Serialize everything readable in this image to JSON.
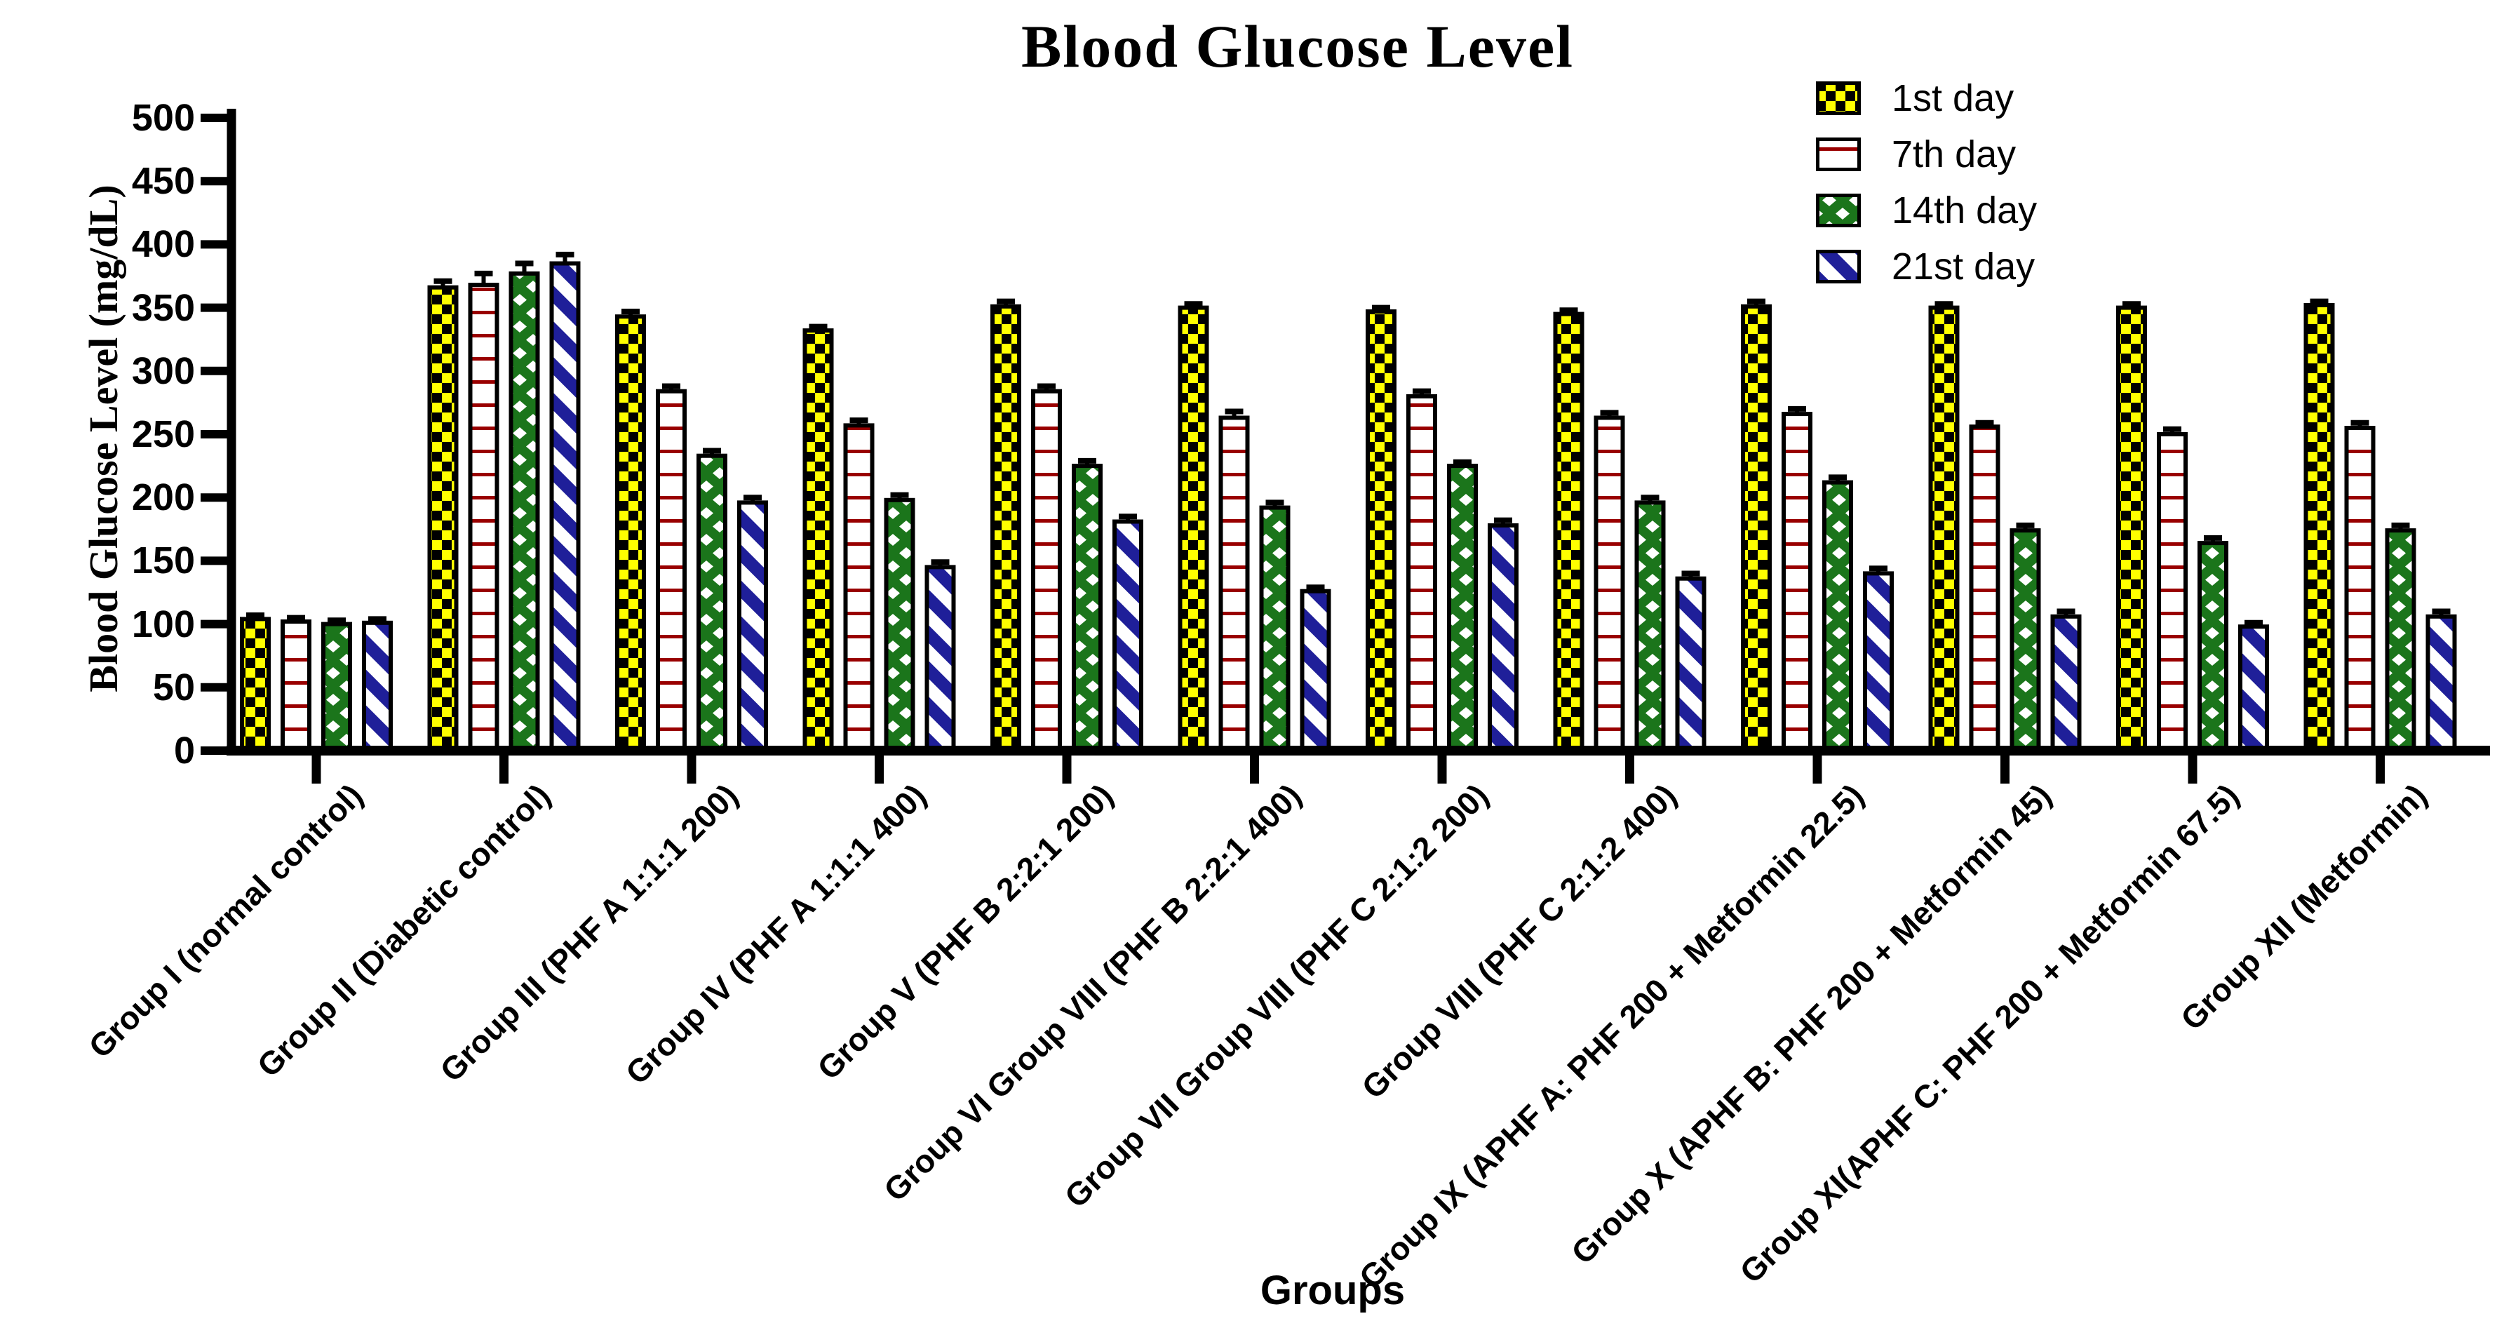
{
  "chart_data": {
    "type": "bar",
    "title": "Blood Glucose Level",
    "xlabel": "Groups",
    "ylabel": "Blood Glucose Level (mg/dL)",
    "ylim": [
      0,
      500
    ],
    "y_ticks": [
      0,
      50,
      100,
      150,
      200,
      250,
      300,
      350,
      400,
      450,
      500
    ],
    "grid": false,
    "legend_position": "top-right-inside",
    "error_bars": "sem-upper",
    "categories": [
      "Group I (normal control)",
      "Group II (Diabetic control)",
      "Group III (PHF A 1:1:1 200)",
      "Group IV (PHF A 1:1:1 400)",
      "Group V (PHF B 2:2:1 200)",
      "Group VI Group VIII (PHF B 2:2:1 400)",
      "Group VII Group VIII (PHF C 2:1:2 200)",
      "Group VIII (PHF C 2:1:2 400)",
      "Group IX (APHF A: PHF 200 + Metformin 22.5)",
      "Group X (APHF B: PHF 200 + Metformin 45)",
      "Group XI(APHF C: PHF 200 + Metformin 67.5)",
      "Group XII (Metformin)"
    ],
    "series": [
      {
        "name": "1st day",
        "pattern": "yellow-black-checker",
        "values": [
          104,
          366,
          343,
          332,
          351,
          350,
          347,
          345,
          351,
          350,
          350,
          352
        ],
        "errors": [
          3,
          5,
          4,
          3,
          4,
          3,
          3,
          3,
          4,
          3,
          3,
          3
        ]
      },
      {
        "name": "7th day",
        "pattern": "white-red-horizontal-lines",
        "values": [
          102,
          368,
          284,
          257,
          284,
          263,
          280,
          263,
          266,
          256,
          250,
          255
        ],
        "errors": [
          3,
          9,
          4,
          4,
          4,
          5,
          4,
          4,
          4,
          3,
          4,
          4
        ]
      },
      {
        "name": "14th day",
        "pattern": "green-white-diamonds",
        "values": [
          100,
          377,
          233,
          198,
          225,
          192,
          225,
          196,
          212,
          174,
          164,
          174
        ],
        "errors": [
          3,
          8,
          4,
          4,
          4,
          4,
          3,
          4,
          4,
          4,
          4,
          4
        ]
      },
      {
        "name": "21st day",
        "pattern": "blue-white-diagonal-stripes",
        "values": [
          101,
          385,
          196,
          145,
          181,
          126,
          178,
          136,
          140,
          106,
          98,
          106
        ],
        "errors": [
          3,
          7,
          4,
          4,
          4,
          3,
          4,
          4,
          4,
          4,
          3,
          4
        ]
      }
    ],
    "colors": {
      "bar_yellow": "#FFFF00",
      "bar_black": "#000000",
      "bar_dark_red": "#990000",
      "bar_dark_green": "#1B751B",
      "bar_navy_blue": "#1F1F99",
      "bar_white": "#FFFFFF",
      "axis_black": "#000000"
    }
  }
}
